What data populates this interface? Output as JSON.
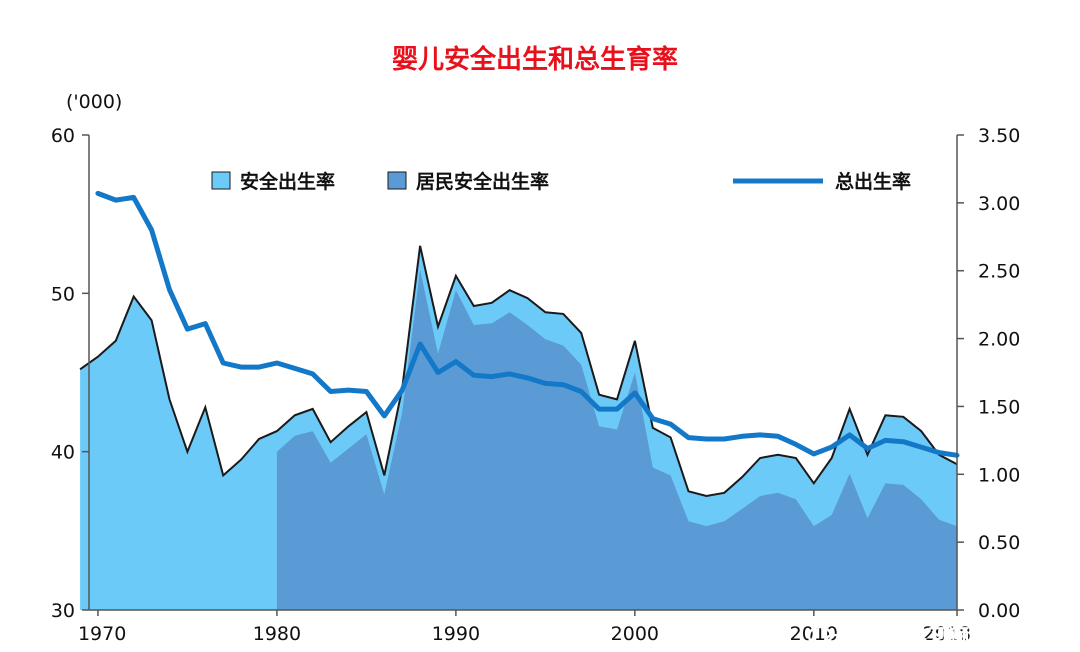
{
  "chart_data": {
    "type": "area",
    "title": "婴儿安全出生和总生育率",
    "left_axis_unit": "('000)",
    "ylim_left": [
      30,
      60
    ],
    "ylim_right": [
      0,
      3.5
    ],
    "xlim": [
      1970,
      2018
    ],
    "left_ticks": [
      "30",
      "40",
      "50",
      "60"
    ],
    "right_ticks": [
      "0.00",
      "0.50",
      "1.00",
      "1.50",
      "2.00",
      "2.50",
      "3.00",
      "3.50"
    ],
    "x_ticks": [
      "1970",
      "1980",
      "1990",
      "2000",
      "2010",
      "2018"
    ],
    "legend": [
      {
        "label": "安全出生率",
        "color": "#6ccaf8",
        "kind": "box"
      },
      {
        "label": "居民安全出生率",
        "color": "#5b9bd5",
        "kind": "box"
      },
      {
        "label": "总出生率",
        "color": "#1478c8",
        "kind": "line"
      }
    ],
    "series": [
      {
        "name": "安全出生率",
        "axis": "left",
        "x": [
          1969,
          1970,
          1971,
          1972,
          1973,
          1974,
          1975,
          1976,
          1977,
          1978,
          1979,
          1980,
          1981,
          1982,
          1983,
          1984,
          1985,
          1986,
          1987,
          1988,
          1989,
          1990,
          1991,
          1992,
          1993,
          1994,
          1995,
          1996,
          1997,
          1998,
          1999,
          2000,
          2001,
          2002,
          2003,
          2004,
          2005,
          2006,
          2007,
          2008,
          2009,
          2010,
          2011,
          2012,
          2013,
          2014,
          2015,
          2016,
          2017,
          2018
        ],
        "values": [
          45.2,
          46.0,
          47.0,
          49.8,
          48.3,
          43.3,
          40.0,
          42.8,
          38.5,
          39.5,
          40.8,
          41.3,
          42.3,
          42.7,
          40.6,
          41.6,
          42.5,
          38.5,
          44.0,
          53.0,
          47.9,
          51.1,
          49.2,
          49.4,
          50.2,
          49.7,
          48.8,
          48.7,
          47.5,
          43.6,
          43.3,
          47.0,
          41.5,
          40.9,
          37.5,
          37.2,
          37.4,
          38.4,
          39.6,
          39.8,
          39.6,
          38.0,
          39.6,
          42.7,
          39.8,
          42.3,
          42.2,
          41.3,
          39.8,
          39.2
        ]
      },
      {
        "name": "居民安全出生率",
        "axis": "left",
        "x": [
          1980,
          1981,
          1982,
          1983,
          1984,
          1985,
          1986,
          1987,
          1988,
          1989,
          1990,
          1991,
          1992,
          1993,
          1994,
          1995,
          1996,
          1997,
          1998,
          1999,
          2000,
          2001,
          2002,
          2003,
          2004,
          2005,
          2006,
          2007,
          2008,
          2009,
          2010,
          2011,
          2012,
          2013,
          2014,
          2015,
          2016,
          2017,
          2018
        ],
        "values": [
          40.0,
          41.0,
          41.3,
          39.3,
          40.2,
          41.1,
          37.3,
          42.5,
          51.5,
          46.2,
          50.2,
          48.0,
          48.1,
          48.8,
          48.0,
          47.1,
          46.7,
          45.5,
          41.6,
          41.4,
          45.0,
          39.0,
          38.5,
          35.6,
          35.3,
          35.6,
          36.4,
          37.2,
          37.4,
          37.0,
          35.3,
          36.0,
          38.6,
          35.8,
          38.0,
          37.9,
          37.0,
          35.7,
          35.3
        ]
      },
      {
        "name": "总出生率",
        "axis": "right",
        "x": [
          1970,
          1971,
          1972,
          1973,
          1974,
          1975,
          1976,
          1977,
          1978,
          1979,
          1980,
          1981,
          1982,
          1983,
          1984,
          1985,
          1986,
          1987,
          1988,
          1989,
          1990,
          1991,
          1992,
          1993,
          1994,
          1995,
          1996,
          1997,
          1998,
          1999,
          2000,
          2001,
          2002,
          2003,
          2004,
          2005,
          2006,
          2007,
          2008,
          2009,
          2010,
          2011,
          2012,
          2013,
          2014,
          2015,
          2016,
          2017,
          2018
        ],
        "values": [
          3.07,
          3.02,
          3.04,
          2.8,
          2.36,
          2.07,
          2.11,
          1.82,
          1.79,
          1.79,
          1.82,
          1.78,
          1.74,
          1.61,
          1.62,
          1.61,
          1.43,
          1.62,
          1.96,
          1.75,
          1.83,
          1.73,
          1.72,
          1.74,
          1.71,
          1.67,
          1.66,
          1.61,
          1.48,
          1.48,
          1.6,
          1.41,
          1.37,
          1.27,
          1.26,
          1.26,
          1.28,
          1.29,
          1.28,
          1.22,
          1.15,
          1.2,
          1.29,
          1.19,
          1.25,
          1.24,
          1.2,
          1.16,
          1.14
        ]
      }
    ]
  },
  "watermark": {
    "text": "A计划学习狮城篇",
    "icon": "wechat-icon"
  }
}
